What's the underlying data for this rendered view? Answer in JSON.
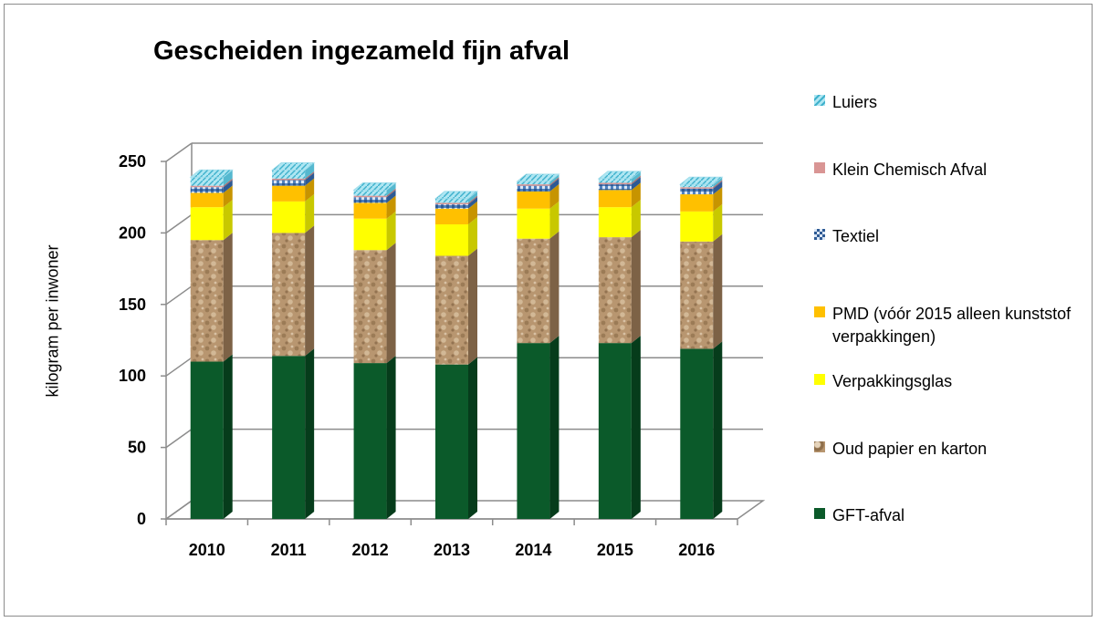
{
  "chart_data": {
    "type": "bar",
    "stacked": true,
    "title": "Gescheiden ingezameld fijn afval",
    "xlabel": "",
    "ylabel": "kilogram per inwoner",
    "ylim": [
      0,
      250
    ],
    "yticks": [
      0,
      50,
      100,
      150,
      200,
      250
    ],
    "categories": [
      "2010",
      "2011",
      "2012",
      "2013",
      "2014",
      "2015",
      "2016"
    ],
    "series": [
      {
        "name": "GFT-afval",
        "color": "#0b5a2a",
        "values": [
          110,
          114,
          109,
          108,
          123,
          123,
          119
        ]
      },
      {
        "name": "Oud papier en karton",
        "color": "#b89670",
        "values": [
          85,
          86,
          79,
          76,
          73,
          74,
          75
        ]
      },
      {
        "name": "Verpakkingsglas",
        "color": "#ffff00",
        "values": [
          23,
          22,
          22,
          22,
          21,
          21,
          21
        ]
      },
      {
        "name": "PMD (vóór 2015 alleen kunststof verpakkingen)",
        "color": "#ffc000",
        "values": [
          10,
          11,
          11,
          11,
          12,
          12,
          12
        ]
      },
      {
        "name": "Textiel",
        "color": "#4f81bd",
        "values": [
          4,
          4,
          4,
          3,
          4,
          4,
          4
        ]
      },
      {
        "name": "Klein Chemisch Afval",
        "color": "#d99594",
        "values": [
          1,
          1,
          1,
          1,
          1,
          1,
          1
        ]
      },
      {
        "name": "Luiers",
        "color": "#7fd3e6",
        "values": [
          6,
          6,
          4,
          3,
          2,
          3,
          2
        ]
      }
    ],
    "legend_position": "right",
    "grid": true
  }
}
